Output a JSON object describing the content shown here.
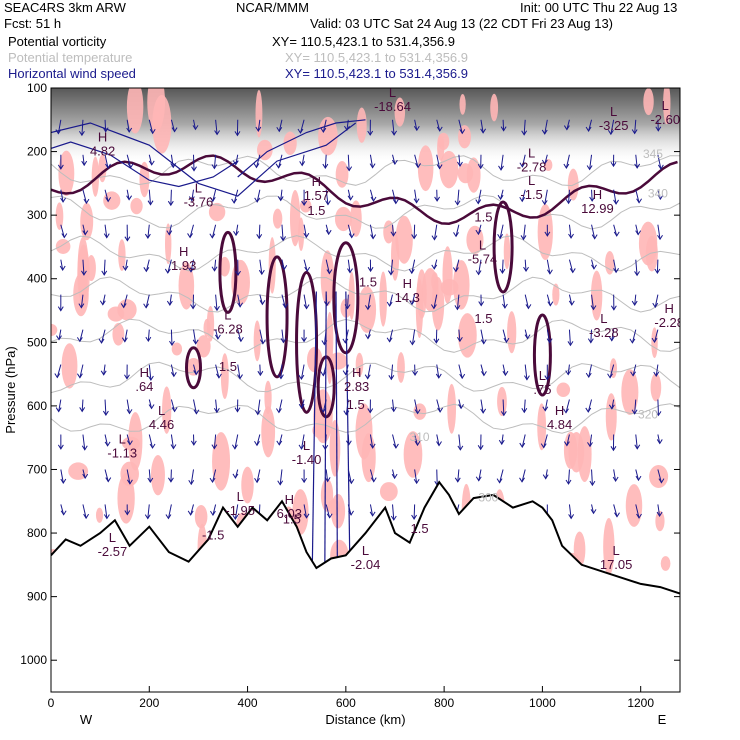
{
  "header": {
    "model": "SEAC4RS  3km ARW",
    "org": "NCAR/MMM",
    "init": "Init: 00 UTC Thu 22 Aug 13",
    "fcst": "Fcst:    51 h",
    "valid": "Valid: 03 UTC Sat 24 Aug 13 (22 CDT Fri 23 Aug 13)"
  },
  "legend": [
    {
      "name": "Potential vorticity",
      "xy": "XY= 110.5,423.1 to 531.4,356.9",
      "color": "#000000"
    },
    {
      "name": "Potential temperature",
      "xy": "XY= 110.5,423.1 to 531.4,356.9",
      "color": "#bdbdbd"
    },
    {
      "name": "Horizontal wind speed",
      "xy": "XY= 110.5,423.1 to 531.4,356.9",
      "color": "#1a1a8c"
    }
  ],
  "colors": {
    "potential_vorticity_positive": "#ffb6b6",
    "potential_vorticity_contour": "#4a0a3a",
    "theta": "#bdbdbd",
    "wind": "#1a1a8c",
    "terrain": "#000000",
    "upper_shading": "#555555"
  },
  "chart_data": {
    "type": "cross-section",
    "xlabel": "Distance (km)",
    "ylabel": "Pressure (hPa)",
    "xlim": [
      0,
      1280
    ],
    "ylim": [
      1050,
      100
    ],
    "xticks": [
      0,
      200,
      400,
      600,
      800,
      1000,
      1200
    ],
    "yticks": [
      100,
      200,
      300,
      400,
      500,
      600,
      700,
      800,
      900,
      1000
    ],
    "x_endpoint_labels": {
      "left": "W",
      "right": "E"
    },
    "terrain": {
      "x": [
        0,
        30,
        60,
        100,
        130,
        160,
        200,
        240,
        280,
        320,
        350,
        380,
        410,
        440,
        470,
        500,
        520,
        540,
        570,
        600,
        640,
        680,
        700,
        730,
        760,
        790,
        810,
        830,
        860,
        900,
        940,
        980,
        1000,
        1020,
        1040,
        1080,
        1120,
        1160,
        1200,
        1240,
        1280
      ],
      "p": [
        835,
        810,
        820,
        800,
        780,
        820,
        790,
        830,
        845,
        810,
        760,
        790,
        760,
        780,
        750,
        790,
        830,
        855,
        840,
        835,
        800,
        760,
        800,
        815,
        760,
        720,
        740,
        770,
        745,
        740,
        760,
        750,
        760,
        780,
        820,
        850,
        860,
        870,
        880,
        885,
        895
      ]
    },
    "theta_contours_K": [
      300,
      310,
      320,
      330,
      340,
      345,
      350
    ],
    "theta_labels": [
      {
        "text": "340",
        "x": 1235,
        "p": 272
      },
      {
        "text": "345",
        "x": 1225,
        "p": 210
      },
      {
        "text": "320",
        "x": 1215,
        "p": 620
      },
      {
        "text": "310",
        "x": 750,
        "p": 655
      },
      {
        "text": "300",
        "x": 890,
        "p": 750
      }
    ],
    "wind_speed_contours": [
      {
        "x": [
          0,
          80,
          200,
          300,
          380,
          460,
          560,
          620
        ],
        "p": [
          170,
          155,
          190,
          250,
          270,
          215,
          190,
          155
        ]
      },
      {
        "x": [
          0,
          40,
          120,
          200,
          260,
          330,
          380
        ],
        "p": [
          195,
          185,
          205,
          245,
          255,
          240,
          215
        ]
      },
      {
        "x": [
          380,
          440,
          520,
          580,
          640
        ],
        "p": [
          240,
          200,
          170,
          155,
          150
        ]
      }
    ],
    "high_low_labels": [
      {
        "type": "L",
        "value": "-18.64",
        "x": 695,
        "p": 130
      },
      {
        "type": "L",
        "value": "-2.60",
        "x": 1250,
        "p": 150
      },
      {
        "type": "L",
        "value": "-3.25",
        "x": 1145,
        "p": 160
      },
      {
        "type": "H",
        "value": "4.82",
        "x": 105,
        "p": 200
      },
      {
        "type": "L",
        "value": "-2.78",
        "x": 978,
        "p": 225
      },
      {
        "type": "L",
        "value": "-1.5",
        "x": 978,
        "p": 268
      },
      {
        "type": "L",
        "value": "-3.76",
        "x": 300,
        "p": 280
      },
      {
        "type": "H",
        "value": "12.99",
        "x": 1112,
        "p": 290
      },
      {
        "type": "H",
        "value": "1.57",
        "x": 540,
        "p": 270
      },
      {
        "type": "H",
        "value": "1.93",
        "x": 270,
        "p": 380
      },
      {
        "type": "L",
        "value": "-5.74",
        "x": 878,
        "p": 370
      },
      {
        "type": "H",
        "value": "14.3",
        "x": 725,
        "p": 430
      },
      {
        "type": "L",
        "value": "-6.28",
        "x": 360,
        "p": 480
      },
      {
        "type": "L",
        "value": "-3.28",
        "x": 1125,
        "p": 485
      },
      {
        "type": "H",
        "value": "-2.28",
        "x": 1258,
        "p": 470
      },
      {
        "type": "H",
        "value": ".64",
        "x": 190,
        "p": 570
      },
      {
        "type": "L",
        "value": "4.46",
        "x": 225,
        "p": 630
      },
      {
        "type": "H",
        "value": "2.83",
        "x": 622,
        "p": 570
      },
      {
        "type": "L",
        "value": ".75",
        "x": 1000,
        "p": 575
      },
      {
        "type": "H",
        "value": "4.84",
        "x": 1035,
        "p": 630
      },
      {
        "type": "L",
        "value": "-1.13",
        "x": 145,
        "p": 675
      },
      {
        "type": "L",
        "value": "-1.40",
        "x": 520,
        "p": 685
      },
      {
        "type": "L",
        "value": "-1.95",
        "x": 385,
        "p": 765
      },
      {
        "type": "H",
        "value": "6.03",
        "x": 485,
        "p": 770
      },
      {
        "type": "L",
        "value": "-2.57",
        "x": 125,
        "p": 830
      },
      {
        "type": "L",
        "value": "17.05",
        "x": 1150,
        "p": 850
      },
      {
        "type": "L",
        "value": "-2.04",
        "x": 640,
        "p": 850
      }
    ],
    "plain_labels": [
      {
        "text": "1.5",
        "x": 540,
        "p": 300
      },
      {
        "text": "1.5",
        "x": 880,
        "p": 310
      },
      {
        "text": "1.5",
        "x": 360,
        "p": 545
      },
      {
        "text": "1.5",
        "x": 620,
        "p": 605
      },
      {
        "text": "1.5",
        "x": 490,
        "p": 785
      },
      {
        "text": "1.5",
        "x": 750,
        "p": 800
      },
      {
        "text": "-1.5",
        "x": 330,
        "p": 810
      },
      {
        "text": "1.5",
        "x": 880,
        "p": 470
      },
      {
        "text": "1.5",
        "x": 645,
        "p": 412
      }
    ]
  }
}
